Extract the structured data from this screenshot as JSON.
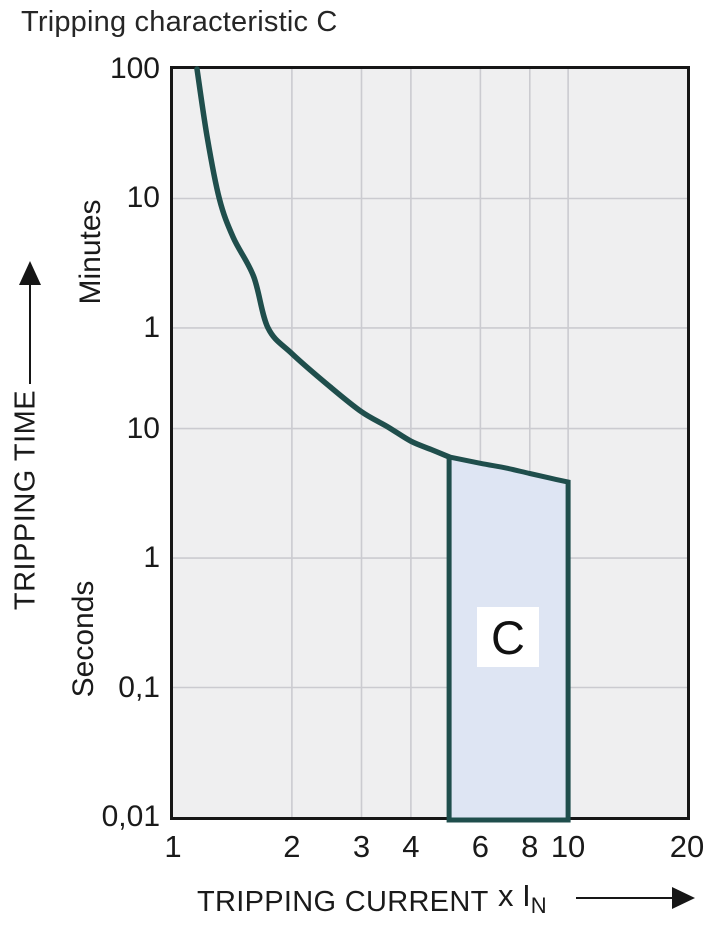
{
  "title": "Tripping characteristic C",
  "colors": {
    "curve": "#1f4e4c",
    "region_fill": "#dee5f3",
    "region_border": "#1f4e4c",
    "plot_bg": "#efeff0",
    "grid": "#cbcbd0",
    "axis": "#161616",
    "text": "#1a1a1a",
    "region_label_bg": "#ffffff"
  },
  "y_axis": {
    "label": "TRIPPING TIME",
    "units_upper": "Minutes",
    "units_lower": "Seconds",
    "ticks": [
      {
        "label": "100",
        "seconds": 6000
      },
      {
        "label": "10",
        "seconds": 600
      },
      {
        "label": "1",
        "seconds": 60
      },
      {
        "label": "10",
        "seconds": 10
      },
      {
        "label": "1",
        "seconds": 1
      },
      {
        "label": "0,1",
        "seconds": 0.1
      },
      {
        "label": "0,01",
        "seconds": 0.01
      }
    ]
  },
  "x_axis": {
    "label": "TRIPPING CURRENT",
    "unit_prefix": "x I",
    "unit_sub": "N",
    "ticks": [
      {
        "label": "1",
        "value": 1
      },
      {
        "label": "2",
        "value": 2
      },
      {
        "label": "3",
        "value": 3
      },
      {
        "label": "4",
        "value": 4
      },
      {
        "label": "6",
        "value": 6
      },
      {
        "label": "8",
        "value": 8
      },
      {
        "label": "10",
        "value": 10
      },
      {
        "label": "20",
        "value": 20
      }
    ]
  },
  "chart_data": {
    "type": "line",
    "title": "Tripping characteristic C",
    "xlabel": "TRIPPING CURRENT (x IN)",
    "ylabel": "TRIPPING TIME (minutes / seconds)",
    "x_scale": "log",
    "y_scale": "log",
    "x_range": [
      1,
      20
    ],
    "y_range_seconds": [
      0.01,
      6000
    ],
    "x_gridlines": [
      2,
      3,
      4,
      6,
      8,
      10
    ],
    "y_gridlines_seconds": [
      600,
      60,
      10,
      1,
      0.1
    ],
    "curve_points_seconds": [
      [
        1.15,
        6000
      ],
      [
        1.22,
        1800
      ],
      [
        1.31,
        600
      ],
      [
        1.42,
        300
      ],
      [
        1.6,
        150
      ],
      [
        1.74,
        60
      ],
      [
        2,
        38
      ],
      [
        2.5,
        21
      ],
      [
        3,
        13.5
      ],
      [
        3.5,
        10.3
      ],
      [
        4,
        8.0
      ],
      [
        4.5,
        6.9
      ],
      [
        5,
        6.05
      ]
    ],
    "region": {
      "label": "C",
      "x_start": 5,
      "x_end": 10,
      "top_points_seconds": [
        [
          5,
          6.05
        ],
        [
          6,
          5.4
        ],
        [
          7,
          4.95
        ],
        [
          8,
          4.5
        ],
        [
          9,
          4.15
        ],
        [
          10,
          3.87
        ]
      ],
      "bottom_seconds": 0.01
    }
  }
}
